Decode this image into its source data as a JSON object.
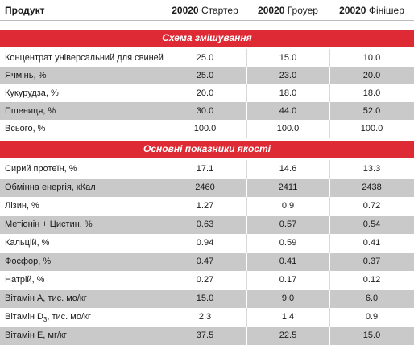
{
  "table": {
    "header": {
      "product": "Продукт",
      "columns": [
        {
          "code": "20020",
          "name": "Стартер"
        },
        {
          "code": "20020",
          "name": "Гроуер"
        },
        {
          "code": "20020",
          "name": "Фінішер"
        }
      ]
    },
    "mix_section": {
      "title": "Схема змішування",
      "rows": [
        {
          "label": "Концентрат універсальний для свиней,%",
          "values": [
            "25.0",
            "15.0",
            "10.0"
          ]
        },
        {
          "label": "Ячмінь, %",
          "values": [
            "25.0",
            "23.0",
            "20.0"
          ]
        },
        {
          "label": "Кукурудза, %",
          "values": [
            "20.0",
            "18.0",
            "18.0"
          ]
        },
        {
          "label": "Пшениця, %",
          "values": [
            "30.0",
            "44.0",
            "52.0"
          ]
        },
        {
          "label": "Всього, %",
          "values": [
            "100.0",
            "100.0",
            "100.0"
          ]
        }
      ]
    },
    "quality_section": {
      "title": "Основні показники якості",
      "rows": [
        {
          "label": "Сирий протеїн, %",
          "values": [
            "17.1",
            "14.6",
            "13.3"
          ]
        },
        {
          "label": "Обмінна енергія, кКал",
          "values": [
            "2460",
            "2411",
            "2438"
          ]
        },
        {
          "label": "Лізин, %",
          "values": [
            "1.27",
            "0.9",
            "0.72"
          ]
        },
        {
          "label": "Метіонін + Цистин, %",
          "values": [
            "0.63",
            "0.57",
            "0.54"
          ]
        },
        {
          "label": "Кальцій, %",
          "values": [
            "0.94",
            "0.59",
            "0.41"
          ]
        },
        {
          "label": "Фосфор, %",
          "values": [
            "0.47",
            "0.41",
            "0.37"
          ]
        },
        {
          "label": "Натрій, %",
          "values": [
            "0.27",
            "0.17",
            "0.12"
          ]
        },
        {
          "label": "Вітамін А, тис. мо/кг",
          "values": [
            "15.0",
            "9.0",
            "6.0"
          ]
        },
        {
          "label_pre": "Вітамін D",
          "label_sub": "3",
          "label_post": ", тис. мо/кг",
          "values": [
            "2.3",
            "1.4",
            "0.9"
          ]
        },
        {
          "label": "Вітамін Е, мг/кг",
          "values": [
            "37.5",
            "22.5",
            "15.0"
          ]
        }
      ]
    }
  }
}
